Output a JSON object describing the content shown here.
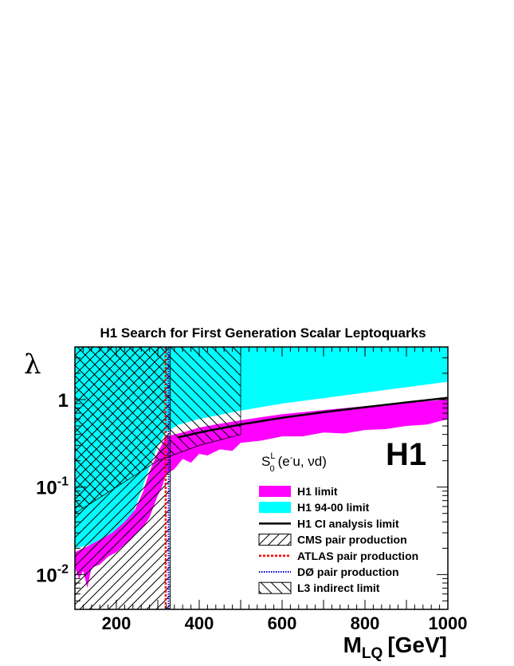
{
  "chart_data": {
    "type": "area",
    "title": "H1 Search for First Generation Scalar Leptoquarks",
    "xlabel": "M",
    "xlabel_sub": "LQ",
    "xlabel_unit": "[GeV]",
    "ylabel": "λ",
    "xlim": [
      100,
      1000
    ],
    "ylim": [
      0.004,
      4
    ],
    "yscale": "log",
    "x_ticks": [
      {
        "v": 200,
        "label": "200"
      },
      {
        "v": 400,
        "label": "400"
      },
      {
        "v": 600,
        "label": "600"
      },
      {
        "v": 800,
        "label": "800"
      },
      {
        "v": 1000,
        "label": "1000"
      }
    ],
    "y_ticks": [
      {
        "v": 1,
        "base": "1",
        "exp": ""
      },
      {
        "v": 0.1,
        "base": "10",
        "exp": "-1"
      },
      {
        "v": 0.01,
        "base": "10",
        "exp": "-2"
      }
    ],
    "brand_label": "H1",
    "channel_label": {
      "main": "S",
      "sup": "L",
      "sub": "0",
      "rest": "(e",
      "e_sup": "-",
      "tail": "u, νd)"
    },
    "legend_position": "bottom-right",
    "colors": {
      "h1_limit": "#ff00ff",
      "h1_9400": "#00ffff",
      "ci": "#000000",
      "atlas": "#ff0000",
      "d0": "#0000cc"
    },
    "series": [
      {
        "name": "H1 limit",
        "kind": "band",
        "upper": [
          [
            100,
            0.018
          ],
          [
            130,
            0.021
          ],
          [
            160,
            0.025
          ],
          [
            190,
            0.03
          ],
          [
            220,
            0.04
          ],
          [
            245,
            0.055
          ],
          [
            265,
            0.09
          ],
          [
            280,
            0.15
          ],
          [
            300,
            0.25
          ],
          [
            320,
            0.38
          ],
          [
            360,
            0.42
          ],
          [
            400,
            0.48
          ],
          [
            450,
            0.53
          ],
          [
            500,
            0.58
          ],
          [
            550,
            0.63
          ],
          [
            600,
            0.68
          ],
          [
            700,
            0.76
          ],
          [
            800,
            0.84
          ],
          [
            900,
            0.92
          ],
          [
            1000,
            1.0
          ]
        ],
        "lower": [
          [
            1000,
            0.6
          ],
          [
            950,
            0.52
          ],
          [
            900,
            0.5
          ],
          [
            850,
            0.46
          ],
          [
            800,
            0.45
          ],
          [
            750,
            0.41
          ],
          [
            700,
            0.42
          ],
          [
            650,
            0.38
          ],
          [
            600,
            0.38
          ],
          [
            550,
            0.34
          ],
          [
            500,
            0.32
          ],
          [
            480,
            0.26
          ],
          [
            450,
            0.27
          ],
          [
            420,
            0.23
          ],
          [
            400,
            0.24
          ],
          [
            380,
            0.19
          ],
          [
            360,
            0.21
          ],
          [
            340,
            0.16
          ],
          [
            320,
            0.14
          ],
          [
            310,
            0.1
          ],
          [
            300,
            0.08
          ],
          [
            290,
            0.06
          ],
          [
            280,
            0.045
          ],
          [
            265,
            0.035
          ],
          [
            250,
            0.03
          ],
          [
            235,
            0.025
          ],
          [
            220,
            0.022
          ],
          [
            200,
            0.018
          ],
          [
            180,
            0.016
          ],
          [
            160,
            0.013
          ],
          [
            140,
            0.012
          ],
          [
            130,
            0.007
          ],
          [
            120,
            0.011
          ],
          [
            110,
            0.009
          ],
          [
            100,
            0.012
          ]
        ]
      },
      {
        "name": "H1 94-00 limit",
        "kind": "band",
        "upper": [
          [
            100,
            4
          ],
          [
            1000,
            4
          ]
        ],
        "lower": [
          [
            1000,
            1.6
          ],
          [
            800,
            1.2
          ],
          [
            600,
            0.9
          ],
          [
            500,
            0.75
          ],
          [
            400,
            0.6
          ],
          [
            350,
            0.52
          ],
          [
            320,
            0.42
          ],
          [
            300,
            0.3
          ],
          [
            280,
            0.17
          ],
          [
            260,
            0.09
          ],
          [
            240,
            0.05
          ],
          [
            220,
            0.035
          ],
          [
            200,
            0.03
          ],
          [
            170,
            0.025
          ],
          [
            140,
            0.022
          ],
          [
            100,
            0.02
          ]
        ]
      },
      {
        "name": "H1 CI analysis limit",
        "kind": "line",
        "points": [
          [
            350,
            0.37
          ],
          [
            400,
            0.42
          ],
          [
            500,
            0.52
          ],
          [
            600,
            0.62
          ],
          [
            700,
            0.72
          ],
          [
            800,
            0.82
          ],
          [
            900,
            0.93
          ],
          [
            1000,
            1.05
          ]
        ]
      },
      {
        "name": "CMS pair production",
        "kind": "excluded",
        "x": [
          100,
          330
        ]
      },
      {
        "name": "ATLAS pair production",
        "kind": "vline",
        "x": 319
      },
      {
        "name": "DØ pair production",
        "kind": "vline",
        "x": 326
      },
      {
        "name": "L3 indirect limit",
        "kind": "region",
        "boundary": [
          [
            100,
            0.05
          ],
          [
            200,
            0.1
          ],
          [
            300,
            0.2
          ],
          [
            400,
            0.3
          ],
          [
            500,
            0.4
          ]
        ]
      }
    ]
  }
}
